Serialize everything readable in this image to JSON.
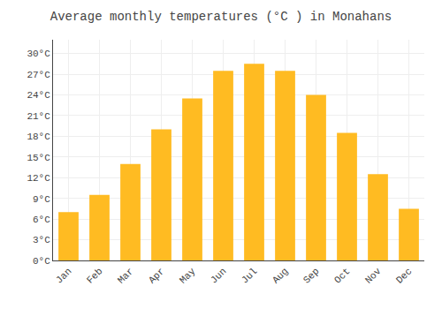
{
  "chart_data": {
    "type": "bar",
    "title": "Average monthly temperatures (°C ) in Monahans",
    "categories": [
      "Jan",
      "Feb",
      "Mar",
      "Apr",
      "May",
      "Jun",
      "Jul",
      "Aug",
      "Sep",
      "Oct",
      "Nov",
      "Dec"
    ],
    "values": [
      7.0,
      9.5,
      14.0,
      19.0,
      23.5,
      27.5,
      28.5,
      27.5,
      24.0,
      18.5,
      12.5,
      7.5
    ],
    "color": "#FFBB22",
    "ylim": [
      0,
      32
    ],
    "yticks": [
      {
        "value": 0,
        "label": "0°C"
      },
      {
        "value": 3,
        "label": "3°C"
      },
      {
        "value": 6,
        "label": "6°C"
      },
      {
        "value": 9,
        "label": "9°C"
      },
      {
        "value": 12,
        "label": "12°C"
      },
      {
        "value": 15,
        "label": "15°C"
      },
      {
        "value": 18,
        "label": "18°C"
      },
      {
        "value": 21,
        "label": "21°C"
      },
      {
        "value": 24,
        "label": "24°C"
      },
      {
        "value": 27,
        "label": "27°C"
      },
      {
        "value": 30,
        "label": "30°C"
      }
    ],
    "grid": true
  }
}
